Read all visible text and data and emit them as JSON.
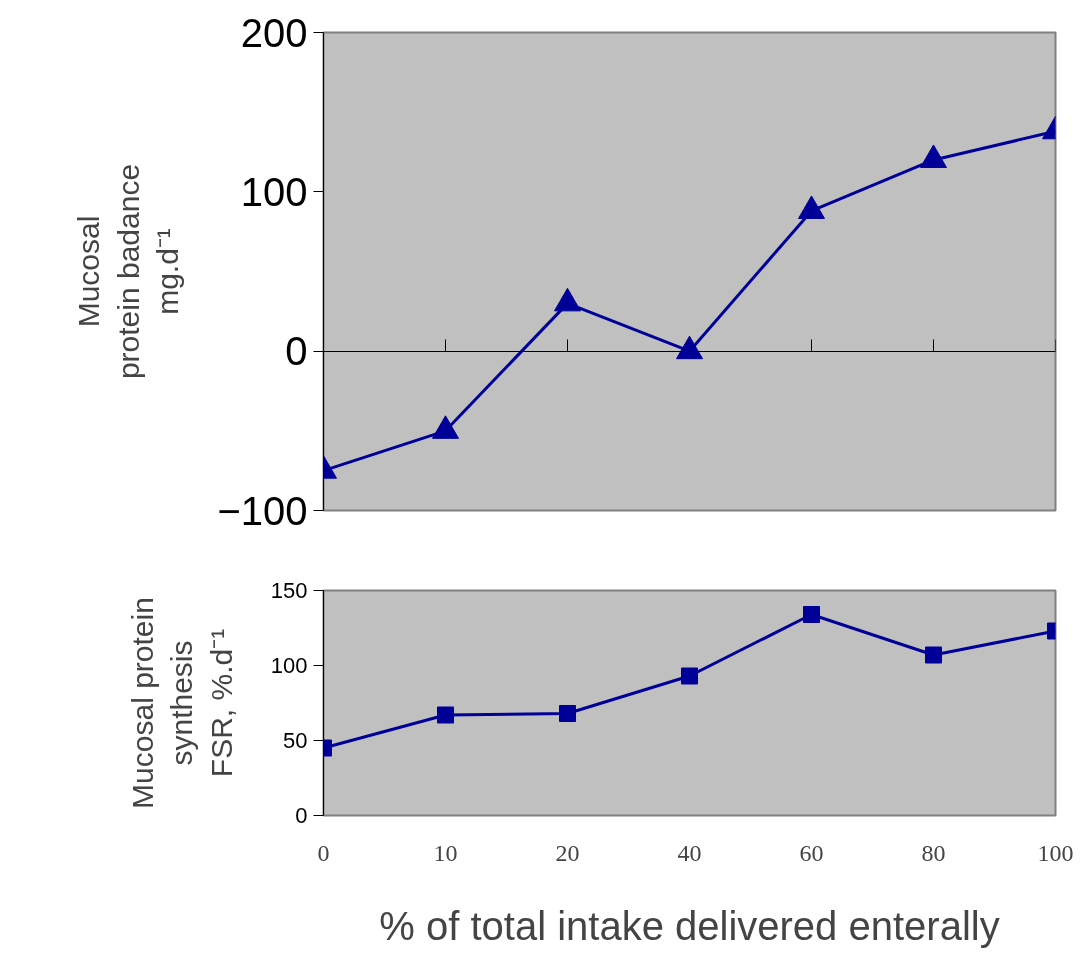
{
  "chart_data": [
    {
      "type": "line",
      "categories": [
        null,
        null,
        null,
        null,
        null,
        null,
        null
      ],
      "ylabel": "Mucosal\nprotein badance\nmg.d⁻¹",
      "ylim": [
        -100,
        200
      ],
      "yticks": [
        -100,
        0,
        100,
        200
      ],
      "marker": "triangle",
      "series": [
        {
          "color": "#000099",
          "values": [
            -75,
            -50,
            30,
            0,
            88,
            120,
            138
          ]
        }
      ]
    },
    {
      "type": "line",
      "categories": [
        "0",
        "10",
        "20",
        "40",
        "60",
        "80",
        "100"
      ],
      "ylabel": "Mucosal protein\nsynthesis\nFSR, %.d⁻¹",
      "xlabel": "% of total intake delivered enterally",
      "ylim": [
        0,
        150
      ],
      "yticks": [
        0,
        50,
        100,
        150
      ],
      "marker": "square",
      "series": [
        {
          "color": "#000099",
          "values": [
            45,
            67,
            68,
            93,
            134,
            107,
            123
          ]
        }
      ]
    }
  ]
}
